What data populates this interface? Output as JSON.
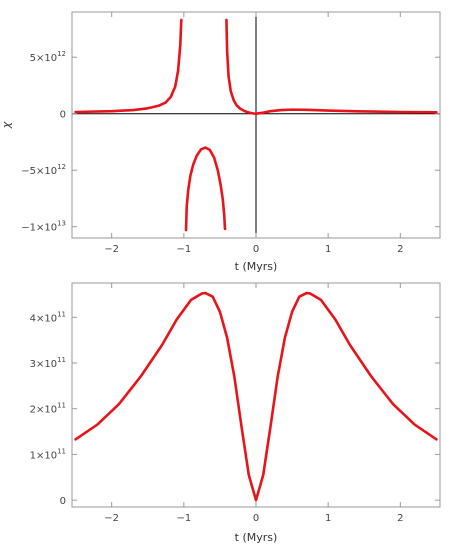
{
  "chart_data": [
    {
      "type": "line",
      "xlabel": "t (Myrs)",
      "ylabel": "χ",
      "xlim": [
        -2.55,
        2.55
      ],
      "ylim": [
        -11000000000000.0,
        9000000000000.0
      ],
      "x_ticks": [
        {
          "value": -2,
          "label": "−2"
        },
        {
          "value": -1,
          "label": "−1"
        },
        {
          "value": 0,
          "label": "0"
        },
        {
          "value": 1,
          "label": "1"
        },
        {
          "value": 2,
          "label": "2"
        }
      ],
      "y_ticks": [
        {
          "value": 5000000000000.0,
          "mant": "5",
          "exp": "12"
        },
        {
          "value": 0,
          "mant": "0",
          "exp": ""
        },
        {
          "value": -5000000000000.0,
          "mant": "−5",
          "exp": "12"
        },
        {
          "value": -10000000000000.0,
          "mant": "−1",
          "exp": "13"
        }
      ],
      "zero_axes": true,
      "series": [
        {
          "color": "#e8141c",
          "segments": [
            {
              "x": [
                -2.5,
                -2.0,
                -1.7,
                -1.5,
                -1.35,
                -1.25,
                -1.18,
                -1.12,
                -1.08,
                -1.05,
                -1.035
              ],
              "y": [
                150000000000.0,
                220000000000.0,
                320000000000.0,
                480000000000.0,
                700000000000.0,
                1000000000000.0,
                1500000000000.0,
                2400000000000.0,
                3800000000000.0,
                6000000000000.0,
                8300000000000.0
              ]
            },
            {
              "x": [
                -0.41,
                -0.4,
                -0.38,
                -0.35,
                -0.31,
                -0.27,
                -0.22,
                -0.17,
                -0.12,
                -0.07,
                -0.03,
                0.0
              ],
              "y": [
                8300000000000.0,
                5500000000000.0,
                3300000000000.0,
                2000000000000.0,
                1200000000000.0,
                750000000000.0,
                450000000000.0,
                270000000000.0,
                140000000000.0,
                60000000000.0,
                15000000000.0,
                0
              ]
            },
            {
              "x": [
                0.0,
                0.1,
                0.2,
                0.35,
                0.5,
                0.7,
                1.0,
                1.4,
                2.0,
                2.5
              ],
              "y": [
                0,
                90000000000.0,
                220000000000.0,
                320000000000.0,
                360000000000.0,
                340000000000.0,
                280000000000.0,
                210000000000.0,
                150000000000.0,
                120000000000.0
              ]
            },
            {
              "x": [
                -0.97,
                -0.96,
                -0.94,
                -0.91,
                -0.87,
                -0.82,
                -0.76,
                -0.7,
                -0.64,
                -0.58,
                -0.53,
                -0.49,
                -0.46,
                -0.44,
                -0.43
              ],
              "y": [
                -10300000000000.0,
                -8200000000000.0,
                -6800000000000.0,
                -5500000000000.0,
                -4500000000000.0,
                -3700000000000.0,
                -3150000000000.0,
                -3000000000000.0,
                -3200000000000.0,
                -3900000000000.0,
                -5000000000000.0,
                -6300000000000.0,
                -7600000000000.0,
                -9000000000000.0,
                -10200000000000.0
              ]
            }
          ]
        }
      ]
    },
    {
      "type": "line",
      "xlabel": "t (Myrs)",
      "ylabel": "",
      "xlim": [
        -2.55,
        2.55
      ],
      "ylim": [
        -15000000000.0,
        475000000000.0
      ],
      "x_ticks": [
        {
          "value": -2,
          "label": "−2"
        },
        {
          "value": -1,
          "label": "−1"
        },
        {
          "value": 0,
          "label": "0"
        },
        {
          "value": 1,
          "label": "1"
        },
        {
          "value": 2,
          "label": "2"
        }
      ],
      "y_ticks": [
        {
          "value": 400000000000.0,
          "mant": "4",
          "exp": "11"
        },
        {
          "value": 300000000000.0,
          "mant": "3",
          "exp": "11"
        },
        {
          "value": 200000000000.0,
          "mant": "2",
          "exp": "11"
        },
        {
          "value": 100000000000.0,
          "mant": "1",
          "exp": "11"
        },
        {
          "value": 0,
          "mant": "0",
          "exp": ""
        }
      ],
      "zero_axes": false,
      "series": [
        {
          "color": "#e8141c",
          "segments": [
            {
              "x": [
                -2.5,
                -2.2,
                -1.9,
                -1.6,
                -1.3,
                -1.1,
                -0.9,
                -0.75,
                -0.7,
                -0.6,
                -0.5,
                -0.4,
                -0.3,
                -0.2,
                -0.1,
                0.0,
                0.1,
                0.2,
                0.3,
                0.4,
                0.5,
                0.6,
                0.7,
                0.75,
                0.9,
                1.1,
                1.3,
                1.6,
                1.9,
                2.2,
                2.5
              ],
              "y": [
                133000000000.0,
                165000000000.0,
                210000000000.0,
                270000000000.0,
                340000000000.0,
                395000000000.0,
                438000000000.0,
                452000000000.0,
                453000000000.0,
                445000000000.0,
                412000000000.0,
                355000000000.0,
                270000000000.0,
                160000000000.0,
                55000000000.0,
                0,
                55000000000.0,
                160000000000.0,
                270000000000.0,
                355000000000.0,
                412000000000.0,
                445000000000.0,
                453000000000.0,
                452000000000.0,
                438000000000.0,
                395000000000.0,
                340000000000.0,
                270000000000.0,
                210000000000.0,
                165000000000.0,
                133000000000.0
              ]
            }
          ]
        }
      ]
    }
  ]
}
